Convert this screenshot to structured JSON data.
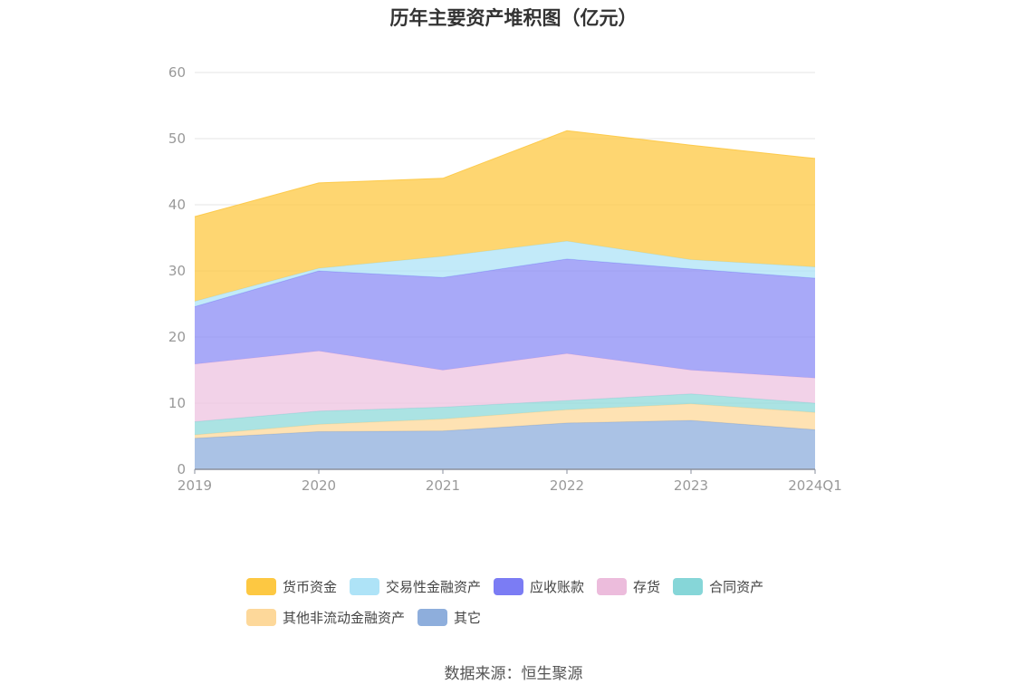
{
  "chart_data": {
    "type": "area",
    "stacked": true,
    "title": "历年主要资产堆积图（亿元）",
    "categories": [
      "2019",
      "2020",
      "2021",
      "2022",
      "2023",
      "2024Q1"
    ],
    "ylim": [
      0,
      60
    ],
    "yticks": [
      0,
      10,
      20,
      30,
      40,
      50,
      60
    ],
    "grid": true,
    "legend_position": "bottom",
    "series": [
      {
        "name": "其它",
        "color": "#8eaedc",
        "values": [
          4.7,
          5.7,
          5.8,
          7.0,
          7.4,
          6.0
        ]
      },
      {
        "name": "其他非流动金融资产",
        "color": "#fdd89a",
        "values": [
          0.5,
          1.1,
          1.8,
          2.0,
          2.5,
          2.6
        ]
      },
      {
        "name": "合同资产",
        "color": "#8fd9d9",
        "values": [
          2.0,
          2.0,
          1.8,
          1.4,
          1.5,
          1.4
        ]
      },
      {
        "name": "存货",
        "color": "#eec3e0",
        "values": [
          8.7,
          9.1,
          5.6,
          7.1,
          3.6,
          3.8
        ]
      },
      {
        "name": "应收账款",
        "color": "#8b8cf6",
        "values": [
          8.7,
          12.1,
          14.0,
          14.3,
          15.3,
          15.1
        ]
      },
      {
        "name": "交易性金融资产",
        "color": "#aee3f7",
        "values": [
          0.8,
          0.4,
          3.2,
          2.7,
          1.4,
          1.7
        ]
      },
      {
        "name": "货币资金",
        "color": "#fdc842",
        "values": [
          12.8,
          12.9,
          11.8,
          16.7,
          17.3,
          16.4
        ]
      }
    ]
  },
  "legend": {
    "rows": [
      [
        "货币资金",
        "交易性金融资产",
        "应收账款",
        "存货",
        "合同资产"
      ],
      [
        "其他非流动金融资产",
        "其它"
      ]
    ]
  },
  "colors": {
    "货币资金": "#fdc842",
    "交易性金融资产": "#aee3f7",
    "应收账款": "#7b7cf4",
    "存货": "#ecbcdc",
    "合同资产": "#86d6d8",
    "其他非流动金融资产": "#fdd89a",
    "其它": "#8eaedc"
  },
  "source": "数据来源：恒生聚源"
}
